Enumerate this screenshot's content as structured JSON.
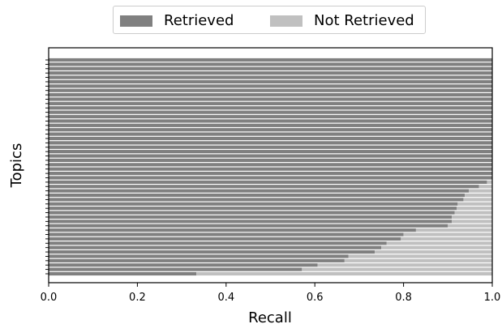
{
  "legend": {
    "retrieved_label": "Retrieved",
    "not_retrieved_label": "Not Retrieved",
    "retrieved_color": "#808080",
    "not_retrieved_color": "#c0c0c0"
  },
  "chart_data": {
    "type": "bar",
    "orientation": "horizontal",
    "stacked": true,
    "title": "",
    "xlabel": "Recall",
    "ylabel": "Topics",
    "xlim": [
      0,
      1
    ],
    "xticks": [
      "0.0",
      "0.2",
      "0.4",
      "0.6",
      "0.8",
      "1.0"
    ],
    "grid": false,
    "legend_position": "top-center",
    "series": [
      {
        "name": "Retrieved",
        "color": "#808080",
        "values": [
          0.333,
          0.571,
          0.606,
          0.667,
          0.676,
          0.735,
          0.75,
          0.762,
          0.794,
          0.8,
          0.828,
          0.9,
          0.909,
          0.909,
          0.915,
          0.92,
          0.922,
          0.935,
          0.938,
          0.947,
          0.97,
          0.988,
          1,
          1,
          1,
          1,
          1,
          1,
          1,
          1,
          1,
          1,
          1,
          1,
          1,
          1,
          1,
          1,
          1,
          1,
          1,
          1,
          1,
          1,
          1,
          1,
          1,
          1,
          1,
          1
        ]
      },
      {
        "name": "Not Retrieved",
        "color": "#c0c0c0",
        "values": [
          0.667,
          0.429,
          0.394,
          0.333,
          0.324,
          0.265,
          0.25,
          0.238,
          0.206,
          0.2,
          0.172,
          0.1,
          0.091,
          0.091,
          0.085,
          0.08,
          0.078,
          0.065,
          0.062,
          0.053,
          0.03,
          0.012,
          0,
          0,
          0,
          0,
          0,
          0,
          0,
          0,
          0,
          0,
          0,
          0,
          0,
          0,
          0,
          0,
          0,
          0,
          0,
          0,
          0,
          0,
          0,
          0,
          0,
          0,
          0,
          0
        ]
      }
    ]
  }
}
